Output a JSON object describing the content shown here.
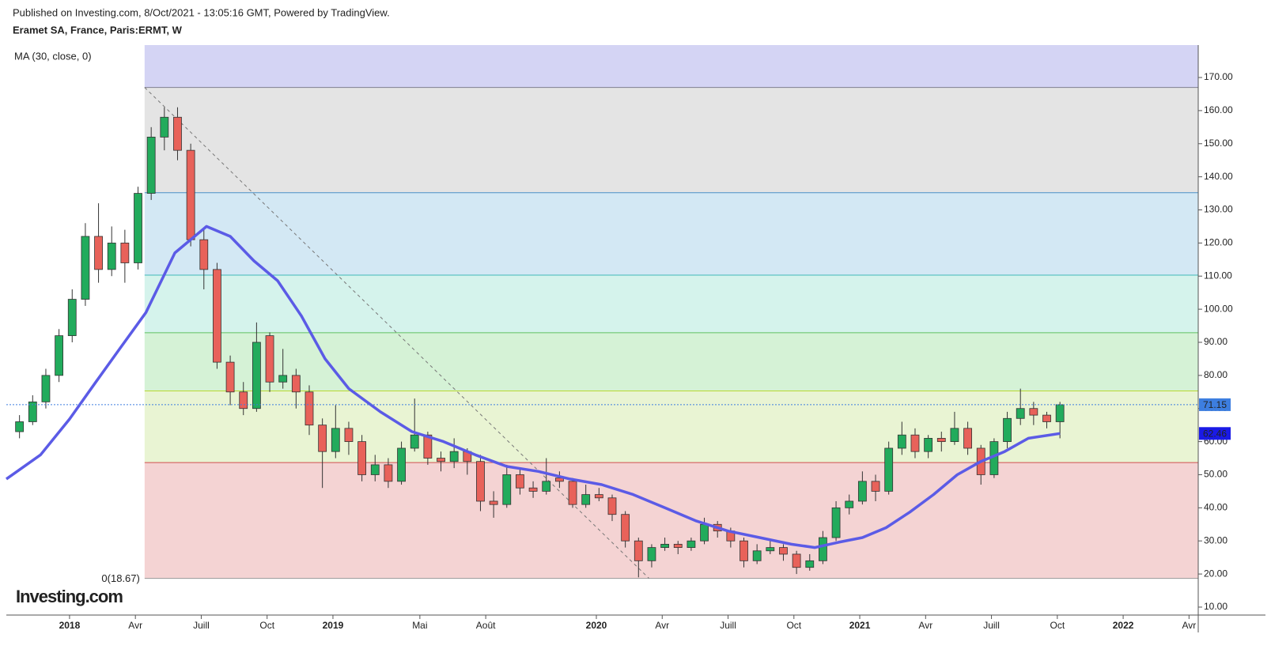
{
  "chart_data": {
    "type": "candlestick",
    "published": "Published on Investing.com, 8/Oct/2021 - 13:05:16 GMT, Powered by TradingView.",
    "title": "Eramet SA, France, Paris:ERMT, W",
    "indicator_label": "MA (30, close, 0)",
    "logo": "Investing.com",
    "xlim": [
      2017.76,
      2022.285
    ],
    "xticks": [
      {
        "value": 2018,
        "label": "2018"
      },
      {
        "value": 2018.25,
        "label": "Avr"
      },
      {
        "value": 2018.5,
        "label": "Juill"
      },
      {
        "value": 2018.75,
        "label": "Oct"
      },
      {
        "value": 2019,
        "label": "2019"
      },
      {
        "value": 2019.33,
        "label": "Mai"
      },
      {
        "value": 2019.58,
        "label": "Août"
      },
      {
        "value": 2020,
        "label": "2020"
      },
      {
        "value": 2020.25,
        "label": "Avr"
      },
      {
        "value": 2020.5,
        "label": "Juill"
      },
      {
        "value": 2020.75,
        "label": "Oct"
      },
      {
        "value": 2021,
        "label": "2021"
      },
      {
        "value": 2021.25,
        "label": "Avr"
      },
      {
        "value": 2021.5,
        "label": "Juill"
      },
      {
        "value": 2021.75,
        "label": "Oct"
      },
      {
        "value": 2022,
        "label": "2022"
      },
      {
        "value": 2022.25,
        "label": "Avr"
      }
    ],
    "ylim": [
      7.6,
      179.8
    ],
    "yticks": [
      {
        "value": 10,
        "label": "10.00"
      },
      {
        "value": 20,
        "label": "20.00"
      },
      {
        "value": 30,
        "label": "30.00"
      },
      {
        "value": 40,
        "label": "40.00"
      },
      {
        "value": 50,
        "label": "50.00"
      },
      {
        "value": 60,
        "label": "60.00"
      },
      {
        "value": 70,
        "label": "70.00"
      },
      {
        "value": 80,
        "label": "80.00"
      },
      {
        "value": 90,
        "label": "90.00"
      },
      {
        "value": 100,
        "label": "100.00"
      },
      {
        "value": 110,
        "label": "110.00"
      },
      {
        "value": 120,
        "label": "120.00"
      },
      {
        "value": 130,
        "label": "130.00"
      },
      {
        "value": 140,
        "label": "140.00"
      },
      {
        "value": 150,
        "label": "150.00"
      },
      {
        "value": 160,
        "label": "160.00"
      },
      {
        "value": 170,
        "label": "170.00"
      }
    ],
    "up_color": "#22ab5c",
    "down_color": "#e8625a",
    "x": [
      2017.81,
      2017.86,
      2017.91,
      2017.96,
      2018.01,
      2018.06,
      2018.11,
      2018.16,
      2018.21,
      2018.26,
      2018.31,
      2018.36,
      2018.41,
      2018.46,
      2018.51,
      2018.56,
      2018.61,
      2018.66,
      2018.71,
      2018.76,
      2018.81,
      2018.86,
      2018.91,
      2018.96,
      2019.01,
      2019.06,
      2019.11,
      2019.16,
      2019.21,
      2019.26,
      2019.31,
      2019.36,
      2019.41,
      2019.46,
      2019.51,
      2019.56,
      2019.61,
      2019.66,
      2019.71,
      2019.76,
      2019.81,
      2019.86,
      2019.91,
      2019.96,
      2020.01,
      2020.06,
      2020.11,
      2020.16,
      2020.21,
      2020.26,
      2020.31,
      2020.36,
      2020.41,
      2020.46,
      2020.51,
      2020.56,
      2020.61,
      2020.66,
      2020.71,
      2020.76,
      2020.81,
      2020.86,
      2020.91,
      2020.96,
      2021.01,
      2021.06,
      2021.11,
      2021.16,
      2021.21,
      2021.26,
      2021.31,
      2021.36,
      2021.41,
      2021.46,
      2021.51,
      2021.56,
      2021.61,
      2021.66,
      2021.71,
      2021.76
    ],
    "open": [
      63,
      66,
      72,
      80,
      92,
      103,
      122,
      112,
      120,
      114,
      135,
      152,
      158,
      148,
      121,
      112,
      84,
      75,
      70,
      92,
      78,
      80,
      75,
      65,
      57,
      64,
      60,
      50,
      53,
      48,
      58,
      62,
      55,
      54,
      57,
      54,
      42,
      41,
      50,
      46,
      45,
      49,
      48,
      41,
      44,
      43,
      38,
      30,
      24,
      28,
      29,
      28,
      30,
      35,
      33,
      30,
      24,
      27,
      28,
      26,
      22,
      24,
      31,
      40,
      42,
      48,
      45,
      58,
      62,
      57,
      61,
      60,
      64,
      58,
      50,
      60,
      67,
      70,
      68,
      66
    ],
    "high": [
      68,
      74,
      82,
      94,
      106,
      126,
      132,
      125,
      124,
      137,
      155,
      161,
      161,
      150,
      124,
      114,
      86,
      78,
      96,
      93,
      88,
      82,
      77,
      67,
      71,
      66,
      62,
      56,
      55,
      60,
      73,
      63,
      57,
      61,
      58,
      56,
      45,
      53,
      52,
      48,
      55,
      51,
      49,
      47,
      46,
      44,
      39,
      31,
      29,
      31,
      30,
      31,
      37,
      36,
      34,
      31,
      29,
      30,
      29,
      27,
      26,
      33,
      42,
      44,
      51,
      50,
      60,
      66,
      64,
      62,
      63,
      69,
      66,
      59,
      61,
      69,
      76,
      72,
      69,
      72
    ],
    "low": [
      61,
      65,
      70,
      78,
      90,
      101,
      108,
      110,
      108,
      112,
      133,
      148,
      145,
      119,
      106,
      82,
      71,
      68,
      69,
      75,
      76,
      70,
      62,
      46,
      55,
      56,
      48,
      48,
      46,
      47,
      57,
      53,
      51,
      52,
      50,
      39,
      37,
      40,
      44,
      43,
      44,
      46,
      40,
      40,
      42,
      36,
      28,
      19,
      22,
      27,
      26,
      27,
      29,
      31,
      28,
      22,
      23,
      26,
      24,
      20,
      21,
      23,
      30,
      38,
      41,
      42,
      44,
      56,
      55,
      55,
      57,
      59,
      56,
      47,
      49,
      58,
      65,
      65,
      64,
      61
    ],
    "close": [
      66,
      72,
      80,
      92,
      103,
      122,
      112,
      120,
      114,
      135,
      152,
      158,
      148,
      121,
      112,
      84,
      75,
      70,
      90,
      78,
      80,
      75,
      65,
      57,
      64,
      60,
      50,
      53,
      48,
      58,
      62,
      55,
      54,
      57,
      54,
      42,
      41,
      50,
      46,
      45,
      48,
      48,
      41,
      44,
      43,
      38,
      30,
      24,
      28,
      29,
      28,
      30,
      35,
      33,
      30,
      24,
      27,
      28,
      26,
      22,
      24,
      31,
      40,
      42,
      48,
      45,
      58,
      62,
      57,
      61,
      60,
      64,
      58,
      50,
      60,
      67,
      70,
      68,
      66,
      71.15
    ],
    "ma": {
      "color": "#5b5be6",
      "x": [
        2017.76,
        2017.89,
        2018.0,
        2018.1,
        2018.19,
        2018.29,
        2018.4,
        2018.52,
        2018.61,
        2018.7,
        2018.79,
        2018.88,
        2018.97,
        2019.06,
        2019.18,
        2019.3,
        2019.42,
        2019.54,
        2019.66,
        2019.78,
        2019.9,
        2020.02,
        2020.14,
        2020.26,
        2020.38,
        2020.5,
        2020.62,
        2020.74,
        2020.83,
        2020.92,
        2021.01,
        2021.1,
        2021.19,
        2021.28,
        2021.37,
        2021.46,
        2021.55,
        2021.64,
        2021.76
      ],
      "values": [
        48.7,
        56,
        66.8,
        78,
        88,
        99,
        117,
        125,
        122,
        114.6,
        108.6,
        98,
        85,
        76,
        69,
        63,
        60,
        56,
        52.5,
        51,
        48.7,
        47,
        44,
        40,
        36,
        33,
        31,
        29,
        28,
        29.6,
        31,
        34,
        38.7,
        44,
        50,
        54,
        57,
        61,
        62.46
      ]
    },
    "fib": {
      "start_x": 2018.285,
      "end_x": 2020.2,
      "label": "0(18.67)",
      "levels": [
        18.67,
        53.67,
        75.3,
        92.9,
        110.3,
        135.2,
        167
      ],
      "line_colors": [
        "#999999",
        "#d05050",
        "#b8d830",
        "#60c060",
        "#40b8b8",
        "#4a90c8",
        "#808090"
      ],
      "zone_colors": [
        "#f4d3d3",
        "#e9f4d3",
        "#d5f2d6",
        "#d5f3ec",
        "#d3e8f4",
        "#e4e4e4",
        "#d4d4f4"
      ]
    },
    "last_price_color": "#3d7ee0",
    "ma_badge_color": "#1a1ae6"
  }
}
